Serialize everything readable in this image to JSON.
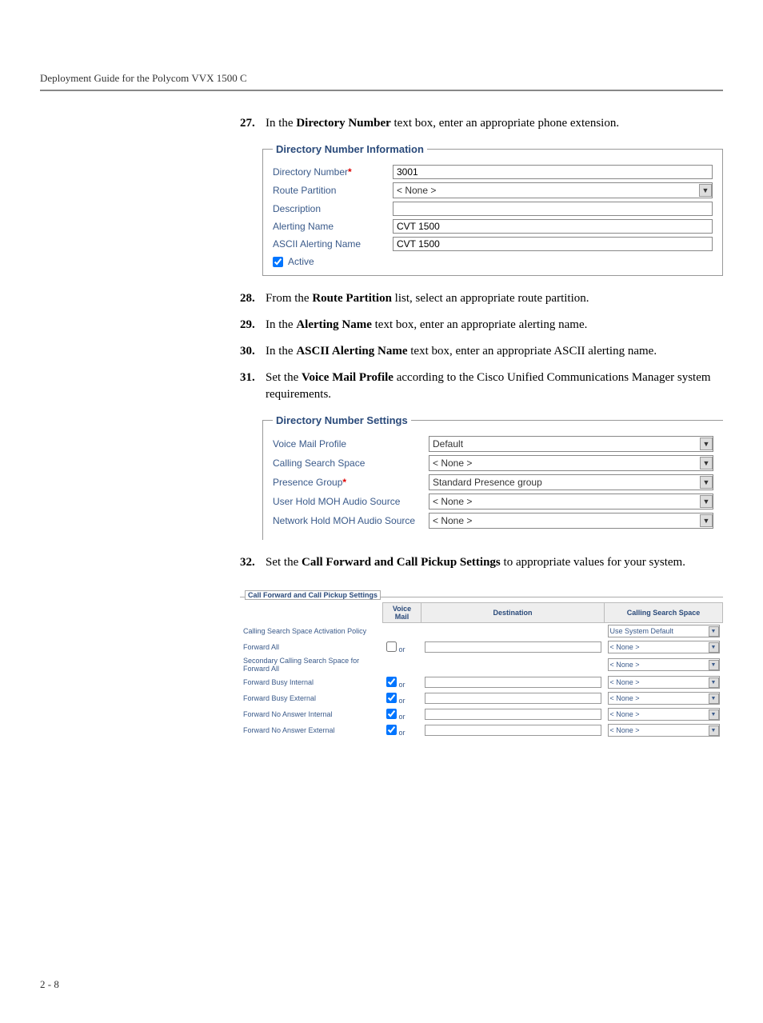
{
  "header": {
    "title": "Deployment Guide for the Polycom VVX 1500 C"
  },
  "steps": {
    "s27": {
      "num": "27.",
      "before": "In the ",
      "bold": "Directory Number",
      "after": " text box, enter an appropriate phone extension."
    },
    "s28": {
      "num": "28.",
      "before": "From the ",
      "bold": "Route Partition",
      "after": " list, select an appropriate route partition."
    },
    "s29": {
      "num": "29.",
      "before": "In the ",
      "bold": "Alerting Name",
      "after": " text box, enter an appropriate alerting name."
    },
    "s30": {
      "num": "30.",
      "before": "In the ",
      "bold": "ASCII Alerting Name",
      "after": " text box, enter an appropriate ASCII alerting name."
    },
    "s31": {
      "num": "31.",
      "before": "Set the ",
      "bold": "Voice Mail Profile",
      "after": " according to the Cisco Unified Communications Manager system requirements."
    },
    "s32": {
      "num": "32.",
      "before": "Set the ",
      "bold": "Call Forward and Call Pickup Settings",
      "after": " to appropriate values for your system."
    }
  },
  "fig1": {
    "legend": "Directory Number Information",
    "rows": {
      "dn": {
        "label": "Directory Number",
        "req": "*",
        "value": "3001"
      },
      "rp": {
        "label": "Route Partition",
        "value": "< None >"
      },
      "desc": {
        "label": "Description",
        "value": ""
      },
      "an": {
        "label": "Alerting Name",
        "value": "CVT 1500"
      },
      "aan": {
        "label": "ASCII Alerting Name",
        "value": "CVT 1500"
      },
      "active": {
        "label": "Active"
      }
    }
  },
  "fig2": {
    "legend": "Directory Number Settings",
    "rows": {
      "vmp": {
        "label": "Voice Mail Profile",
        "value": "Default"
      },
      "css": {
        "label": "Calling Search Space",
        "value": "< None >"
      },
      "pg": {
        "label": "Presence Group",
        "req": "*",
        "value": "Standard Presence group"
      },
      "uh": {
        "label": "User Hold MOH Audio Source",
        "value": "< None >"
      },
      "nh": {
        "label": "Network Hold MOH Audio Source",
        "value": "< None >"
      }
    }
  },
  "fig3": {
    "legend": "Call Forward and Call Pickup Settings",
    "headers": {
      "vm": "Voice Mail",
      "dest": "Destination",
      "css": "Calling Search Space"
    },
    "or": "or",
    "rows": {
      "r0": {
        "label": "Calling Search Space Activation Policy",
        "css": "Use System Default",
        "has_vm": false,
        "has_dest": false
      },
      "r1": {
        "label": "Forward All",
        "checked": false,
        "css": "< None >",
        "has_vm": true,
        "has_dest": true
      },
      "r2": {
        "label": "Secondary Calling Search Space for Forward All",
        "css": "< None >",
        "has_vm": false,
        "has_dest": false
      },
      "r3": {
        "label": "Forward Busy Internal",
        "checked": true,
        "css": "< None >",
        "has_vm": true,
        "has_dest": true
      },
      "r4": {
        "label": "Forward Busy External",
        "checked": true,
        "css": "< None >",
        "has_vm": true,
        "has_dest": true
      },
      "r5": {
        "label": "Forward No Answer Internal",
        "checked": true,
        "css": "< None >",
        "has_vm": true,
        "has_dest": true
      },
      "r6": {
        "label": "Forward No Answer External",
        "checked": true,
        "css": "< None >",
        "has_vm": true,
        "has_dest": true
      }
    }
  },
  "footer": {
    "page": "2 - 8"
  }
}
